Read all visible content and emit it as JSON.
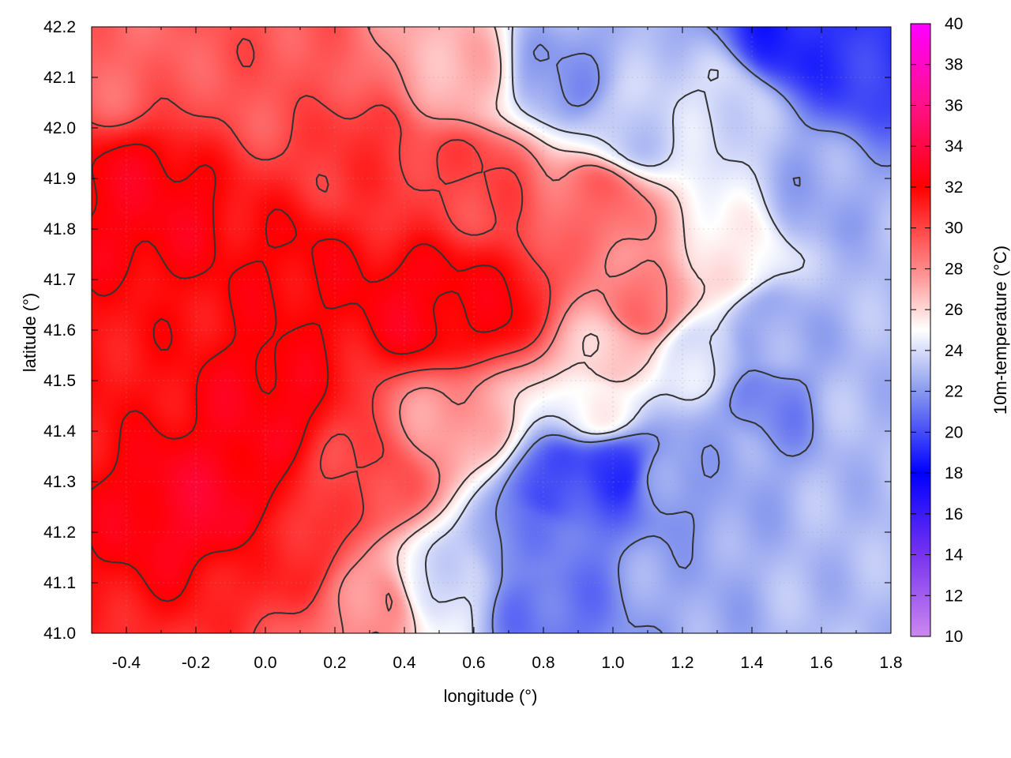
{
  "chart_data": {
    "type": "heatmap",
    "title": "",
    "xlabel": "longitude (°)",
    "ylabel": "latitude (°)",
    "colorbar_label": "10m-temperature (°C)",
    "xlim": [
      -0.5,
      1.8
    ],
    "ylim": [
      41.0,
      42.2
    ],
    "x_ticks": [
      -0.4,
      -0.2,
      0.0,
      0.2,
      0.4,
      0.6,
      0.8,
      1.0,
      1.2,
      1.4,
      1.6,
      1.8
    ],
    "x_tick_labels": [
      "-0.4",
      "-0.2",
      "0.0",
      "0.2",
      "0.4",
      "0.6",
      "0.8",
      "1.0",
      "1.2",
      "1.4",
      "1.6",
      "1.8"
    ],
    "y_ticks": [
      41.0,
      41.1,
      41.2,
      41.3,
      41.4,
      41.5,
      41.6,
      41.7,
      41.8,
      41.9,
      42.0,
      42.1,
      42.2
    ],
    "y_tick_labels": [
      "41.0",
      "41.1",
      "41.2",
      "41.3",
      "41.4",
      "41.5",
      "41.6",
      "41.7",
      "41.8",
      "41.9",
      "42.0",
      "42.1",
      "42.2"
    ],
    "colorbar_range": [
      10,
      40
    ],
    "colorbar_ticks": [
      10,
      12,
      14,
      16,
      18,
      20,
      22,
      24,
      26,
      28,
      30,
      32,
      34,
      36,
      38,
      40
    ],
    "colorbar_tick_labels": [
      "10",
      "12",
      "14",
      "16",
      "18",
      "20",
      "22",
      "24",
      "26",
      "28",
      "30",
      "32",
      "34",
      "36",
      "38",
      "40"
    ],
    "colormap_stops": [
      {
        "value": 10,
        "color": "#cc88ee"
      },
      {
        "value": 14,
        "color": "#7733ee"
      },
      {
        "value": 18,
        "color": "#0000ff"
      },
      {
        "value": 22,
        "color": "#8899ee"
      },
      {
        "value": 25,
        "color": "#ffffff"
      },
      {
        "value": 28,
        "color": "#ff8888"
      },
      {
        "value": 32,
        "color": "#ff0000"
      },
      {
        "value": 36,
        "color": "#ff1188"
      },
      {
        "value": 40,
        "color": "#ff00ff"
      }
    ],
    "grid": true,
    "contours": true,
    "contour_color": "#333333",
    "field_anchors": [
      {
        "lon": -0.35,
        "lat": 41.85,
        "temp": 32.5
      },
      {
        "lon": -0.15,
        "lat": 41.25,
        "temp": 33.0
      },
      {
        "lon": -0.4,
        "lat": 41.55,
        "temp": 31.5
      },
      {
        "lon": 0.1,
        "lat": 41.7,
        "temp": 32.0
      },
      {
        "lon": 0.0,
        "lat": 41.45,
        "temp": 32.5
      },
      {
        "lon": 0.45,
        "lat": 41.65,
        "temp": 32.5
      },
      {
        "lon": 0.65,
        "lat": 41.65,
        "temp": 32.0
      },
      {
        "lon": 0.3,
        "lat": 41.95,
        "temp": 30.5
      },
      {
        "lon": 0.3,
        "lat": 41.3,
        "temp": 30.0
      },
      {
        "lon": 0.55,
        "lat": 41.4,
        "temp": 27.5
      },
      {
        "lon": 0.95,
        "lat": 41.85,
        "temp": 29.0
      },
      {
        "lon": 1.1,
        "lat": 41.65,
        "temp": 28.5
      },
      {
        "lon": 0.55,
        "lat": 42.1,
        "temp": 27.0
      },
      {
        "lon": 0.85,
        "lat": 42.1,
        "temp": 22.0
      },
      {
        "lon": 1.05,
        "lat": 42.0,
        "temp": 23.5
      },
      {
        "lon": 1.3,
        "lat": 42.05,
        "temp": 24.0
      },
      {
        "lon": 1.5,
        "lat": 42.18,
        "temp": 19.0
      },
      {
        "lon": 1.75,
        "lat": 42.15,
        "temp": 19.5
      },
      {
        "lon": 1.6,
        "lat": 41.85,
        "temp": 22.5
      },
      {
        "lon": 1.35,
        "lat": 41.75,
        "temp": 25.5
      },
      {
        "lon": 1.45,
        "lat": 41.6,
        "temp": 22.5
      },
      {
        "lon": 1.45,
        "lat": 41.45,
        "temp": 21.5
      },
      {
        "lon": 1.7,
        "lat": 41.45,
        "temp": 23.0
      },
      {
        "lon": 1.3,
        "lat": 41.35,
        "temp": 22.5
      },
      {
        "lon": 0.85,
        "lat": 41.3,
        "temp": 20.0
      },
      {
        "lon": 1.0,
        "lat": 41.32,
        "temp": 19.5
      },
      {
        "lon": 0.75,
        "lat": 41.18,
        "temp": 21.5
      },
      {
        "lon": 0.82,
        "lat": 41.05,
        "temp": 21.0
      },
      {
        "lon": 1.2,
        "lat": 41.1,
        "temp": 22.5
      },
      {
        "lon": 1.6,
        "lat": 41.1,
        "temp": 23.0
      },
      {
        "lon": 0.5,
        "lat": 41.1,
        "temp": 24.0
      },
      {
        "lon": 0.3,
        "lat": 41.05,
        "temp": 28.0
      },
      {
        "lon": 1.0,
        "lat": 41.55,
        "temp": 26.5
      },
      {
        "lon": 0.95,
        "lat": 41.45,
        "temp": 25.0
      },
      {
        "lon": 1.25,
        "lat": 41.55,
        "temp": 24.0
      },
      {
        "lon": 0.05,
        "lat": 41.15,
        "temp": 31.0
      },
      {
        "lon": 0.6,
        "lat": 41.9,
        "temp": 30.0
      },
      {
        "lon": 1.75,
        "lat": 41.7,
        "temp": 23.0
      },
      {
        "lon": 1.7,
        "lat": 41.25,
        "temp": 23.0
      },
      {
        "lon": 0.0,
        "lat": 42.1,
        "temp": 29.5
      },
      {
        "lon": -0.45,
        "lat": 42.15,
        "temp": 29.0
      },
      {
        "lon": 1.15,
        "lat": 41.3,
        "temp": 22.0
      }
    ],
    "contour_levels": [
      22,
      24,
      26,
      28,
      30,
      32
    ]
  }
}
